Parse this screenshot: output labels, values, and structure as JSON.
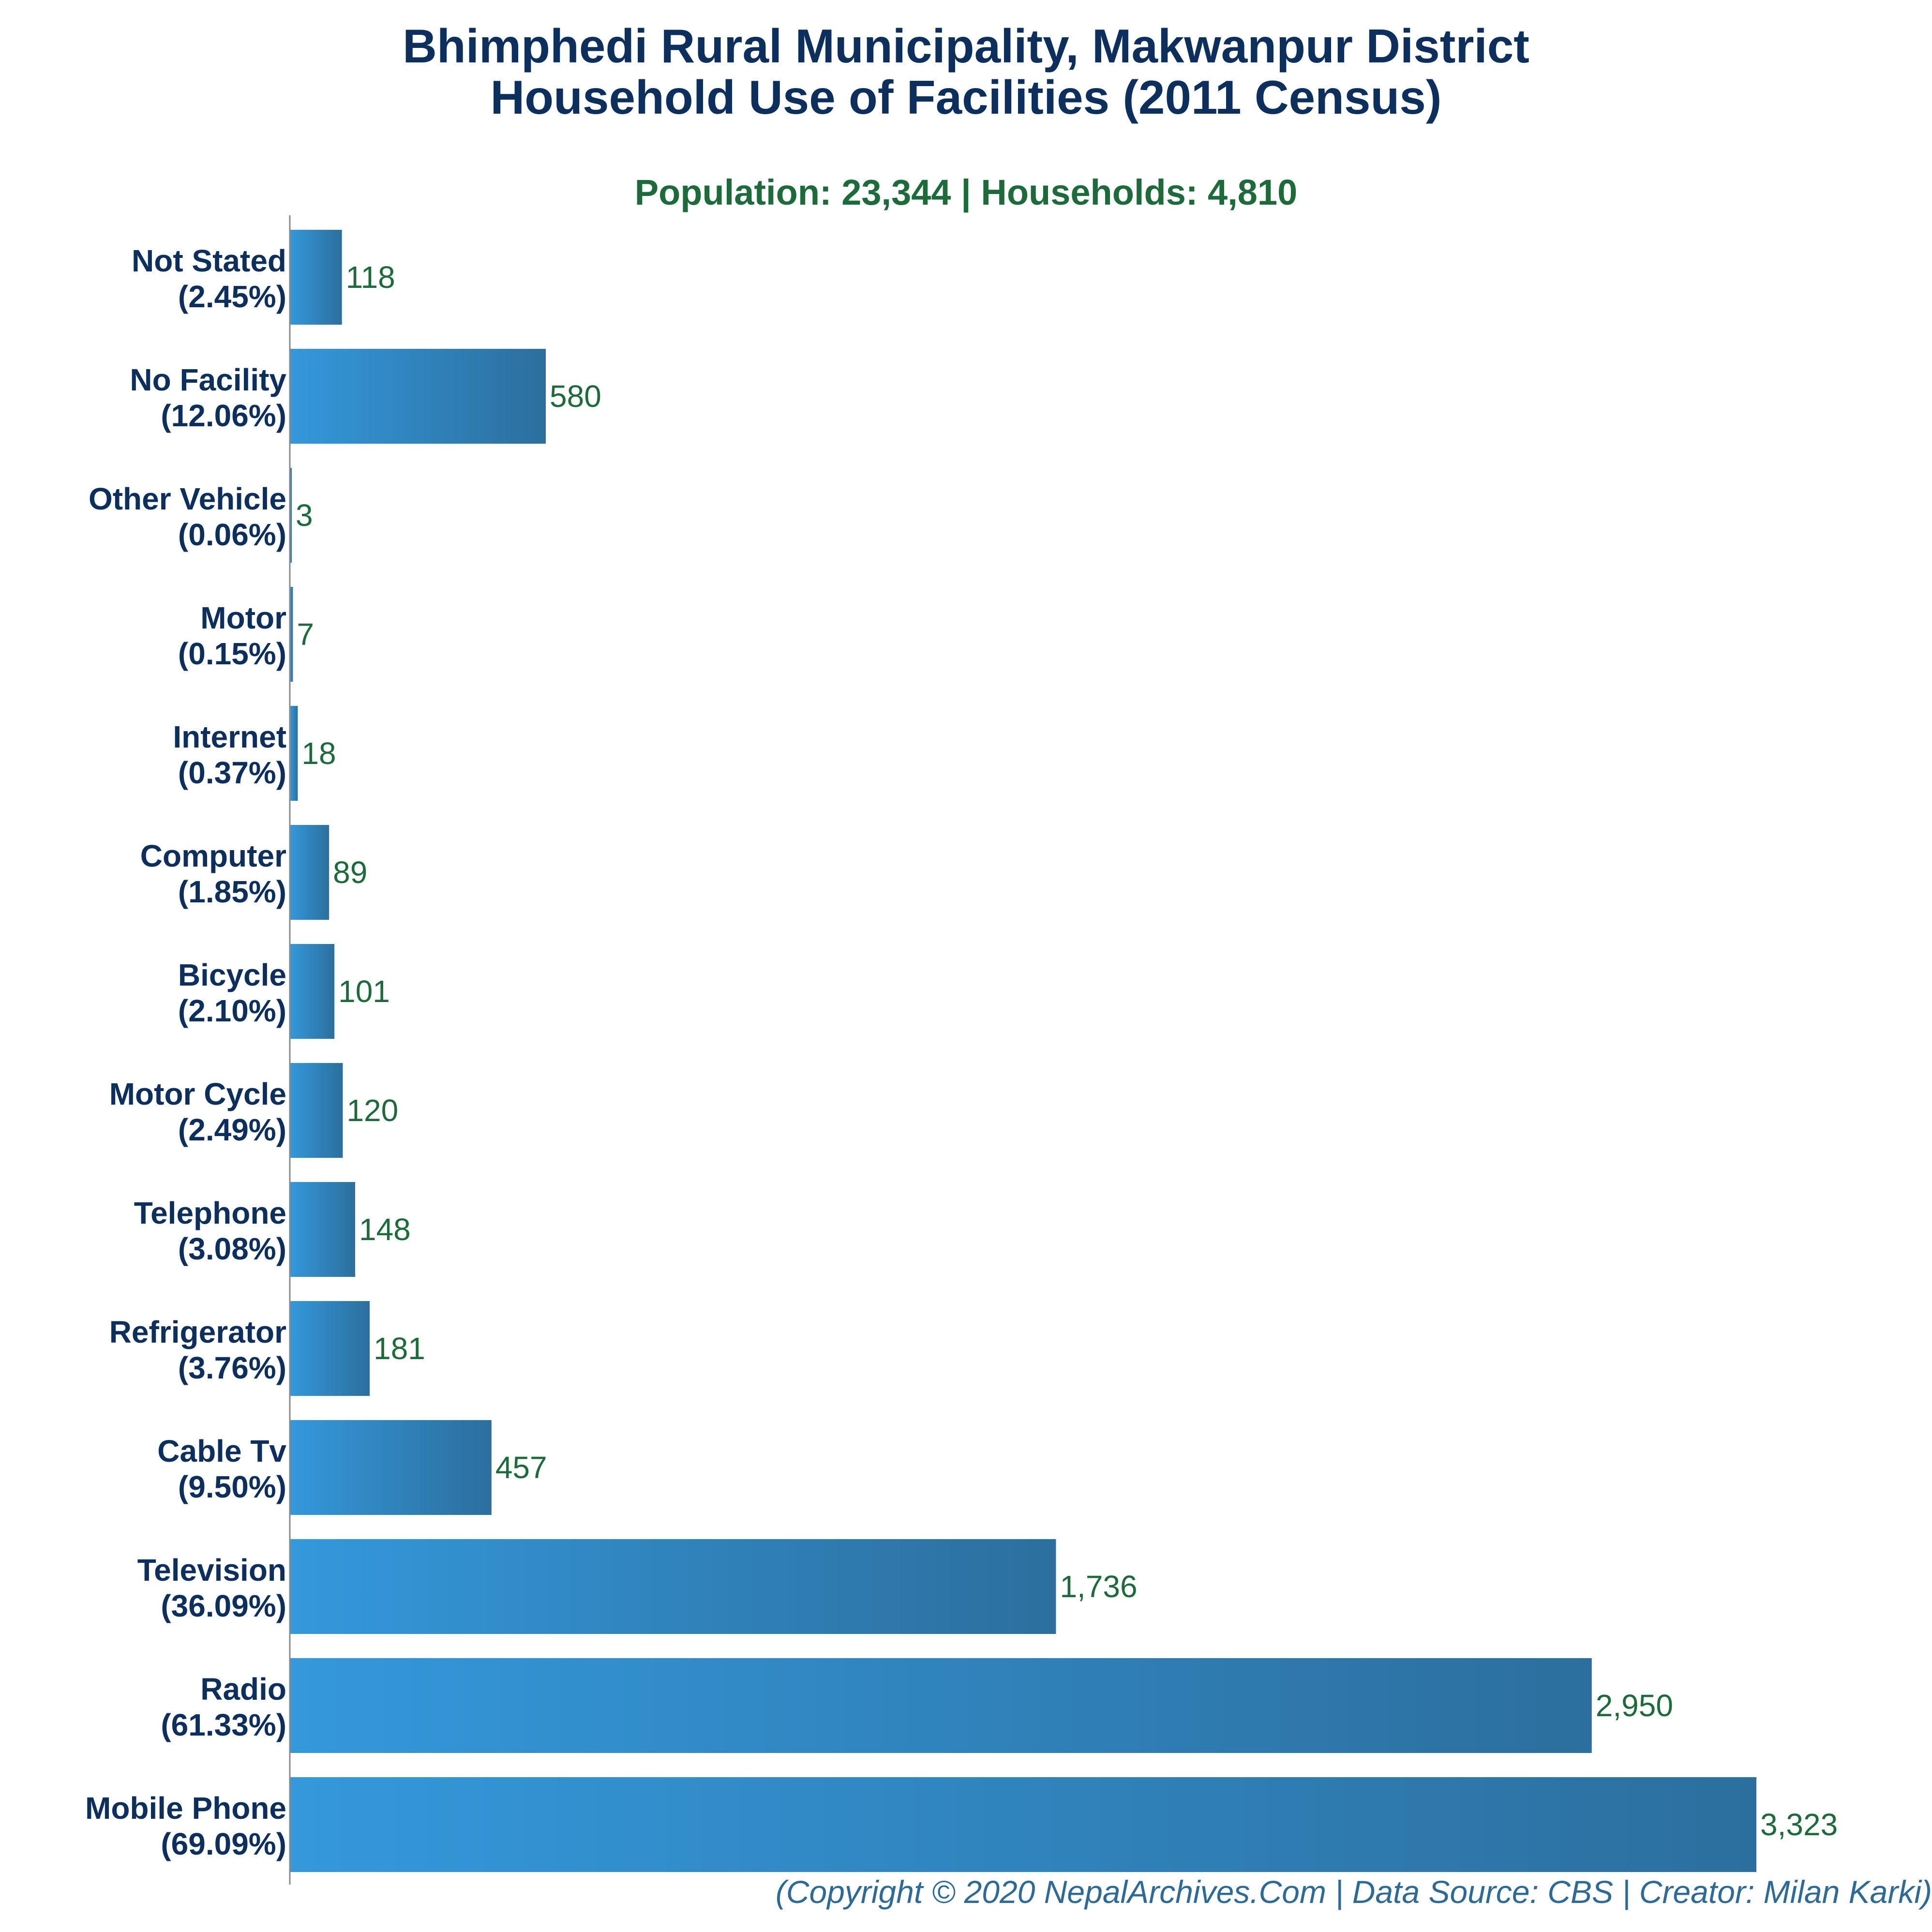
{
  "title_line1": "Bhimphedi Rural Municipality, Makwanpur District",
  "title_line2": "Household Use of Facilities (2011 Census)",
  "subtitle": "Population: 23,344 | Households: 4,810",
  "footer": "(Copyright © 2020 NepalArchives.Com | Data Source: CBS | Creator: Milan Karki)",
  "colors": {
    "bar_start": "#3498db",
    "bar_end": "#2c6f9e",
    "title": "#0d2f5e",
    "value": "#1d6b3b",
    "axis": "#888888"
  },
  "chart_data": {
    "type": "bar",
    "orientation": "horizontal",
    "categories": [
      "Not Stated",
      "No Facility",
      "Other Vehicle",
      "Motor",
      "Internet",
      "Computer",
      "Bicycle",
      "Motor Cycle",
      "Telephone",
      "Refrigerator",
      "Cable Tv",
      "Television",
      "Radio",
      "Mobile Phone"
    ],
    "percent_labels": [
      "(2.45%)",
      "(12.06%)",
      "(0.06%)",
      "(0.15%)",
      "(0.37%)",
      "(1.85%)",
      "(2.10%)",
      "(2.49%)",
      "(3.08%)",
      "(3.76%)",
      "(9.50%)",
      "(36.09%)",
      "(61.33%)",
      "(69.09%)"
    ],
    "values": [
      118,
      580,
      3,
      7,
      18,
      89,
      101,
      120,
      148,
      181,
      457,
      1736,
      2950,
      3323
    ],
    "value_labels": [
      "118",
      "580",
      "3",
      "7",
      "18",
      "89",
      "101",
      "120",
      "148",
      "181",
      "457",
      "1,736",
      "2,950",
      "3,323"
    ],
    "xlim": [
      0,
      3323
    ],
    "grid": false,
    "legend": "none"
  }
}
